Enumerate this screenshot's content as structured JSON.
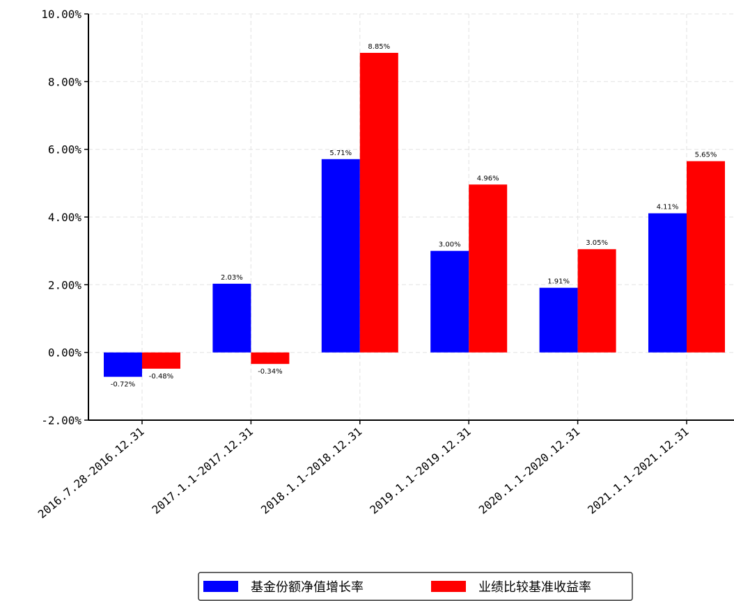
{
  "chart_data": {
    "type": "bar",
    "categories": [
      "2016.7.28-2016.12.31",
      "2017.1.1-2017.12.31",
      "2018.1.1-2018.12.31",
      "2019.1.1-2019.12.31",
      "2020.1.1-2020.12.31",
      "2021.1.1-2021.12.31"
    ],
    "series": [
      {
        "name": "基金份额净值增长率",
        "color": "#0000ff",
        "values": [
          -0.72,
          2.03,
          5.71,
          3.0,
          1.91,
          4.11
        ],
        "labels": [
          "-0.72%",
          "2.03%",
          "5.71%",
          "3.00%",
          "1.91%",
          "4.11%"
        ]
      },
      {
        "name": "业绩比较基准收益率",
        "color": "#ff0000",
        "values": [
          -0.48,
          -0.34,
          8.85,
          4.96,
          3.05,
          5.65
        ],
        "labels": [
          "-0.48%",
          "-0.34%",
          "8.85%",
          "4.96%",
          "3.05%",
          "5.65%"
        ]
      }
    ],
    "yticks": [
      -2,
      0,
      2,
      4,
      6,
      8,
      10
    ],
    "ytick_labels": [
      "-2.00%",
      "0.00%",
      "2.00%",
      "4.00%",
      "6.00%",
      "8.00%",
      "10.00%"
    ],
    "ylim": [
      -2,
      10
    ],
    "unit": "%",
    "grid": true,
    "legend_position": "bottom-center",
    "xlabel": "",
    "ylabel": "",
    "title": ""
  }
}
